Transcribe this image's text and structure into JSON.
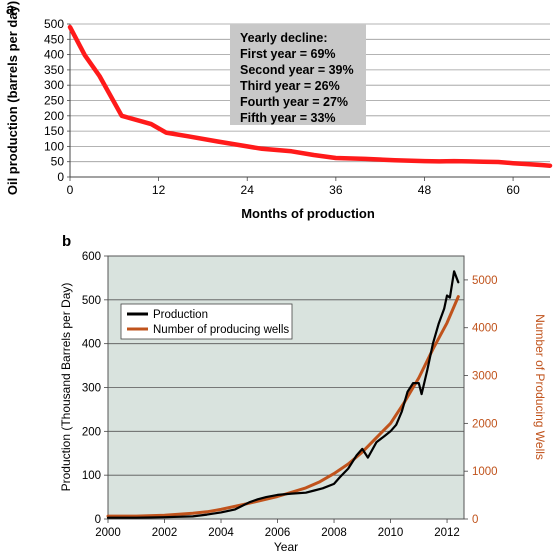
{
  "chart_data": [
    {
      "type": "line",
      "panel_label": "a",
      "xlabel": "Months of production",
      "ylabel": "Oil production (barrels per day)",
      "xlim": [
        0,
        65
      ],
      "ylim": [
        0,
        500
      ],
      "xticks": [
        "0",
        "12",
        "24",
        "36",
        "48",
        "60"
      ],
      "yticks": [
        "0",
        "50",
        "100",
        "150",
        "200",
        "250",
        "300",
        "350",
        "400",
        "450",
        "500"
      ],
      "grid": "horizontal",
      "series": [
        {
          "color": "#ff1a1a",
          "x": [
            0,
            2,
            4,
            7,
            11,
            13,
            16,
            20,
            24,
            26,
            30,
            33,
            36,
            40,
            44,
            48,
            50,
            52,
            54,
            56,
            58,
            60,
            62,
            64,
            65
          ],
          "y": [
            490,
            398,
            330,
            200,
            173,
            145,
            133,
            116,
            100,
            92,
            84,
            72,
            62,
            59,
            55,
            52,
            51,
            52,
            51,
            50,
            49,
            45,
            42,
            39,
            37
          ]
        }
      ],
      "annotation": {
        "lines": [
          "Yearly decline:",
          "First year = 69%",
          "Second year = 39%",
          "Third year = 26%",
          "Fourth year =  27%",
          "Fifth year = 33%"
        ]
      }
    },
    {
      "type": "line",
      "panel_label": "b",
      "xlabel": "Year",
      "ylabel": "Production (Thousand Barrels per Day)",
      "ylabel_right": "Number of Producing Wells",
      "xlim": [
        2000,
        2012.6
      ],
      "ylim": [
        0,
        600
      ],
      "ylim_right": [
        0,
        5500
      ],
      "xticks": [
        "2000",
        "2002",
        "2004",
        "2006",
        "2008",
        "2010",
        "2012"
      ],
      "yticks": [
        "0",
        "100",
        "200",
        "300",
        "400",
        "500",
        "600"
      ],
      "yticks_right": [
        "0",
        "1000",
        "2000",
        "3000",
        "4000",
        "5000"
      ],
      "grid": "horizontal",
      "background": "#d9e3de",
      "legend": {
        "placement": "upper-left",
        "entries": [
          "Production",
          "Number of producing wells"
        ]
      },
      "series": [
        {
          "name": "Production",
          "axis": "left",
          "color": "#000000",
          "x": [
            2000,
            2001,
            2002,
            2003,
            2003.5,
            2004,
            2004.5,
            2005,
            2005.3,
            2005.6,
            2006,
            2006.5,
            2007,
            2007.3,
            2007.6,
            2008,
            2008.2,
            2008.5,
            2008.8,
            2009,
            2009.2,
            2009.5,
            2009.8,
            2010,
            2010.2,
            2010.4,
            2010.6,
            2010.8,
            2011,
            2011.1,
            2011.3,
            2011.5,
            2011.7,
            2011.9,
            2012,
            2012.1,
            2012.25,
            2012.4
          ],
          "y": [
            3,
            3,
            4,
            6,
            10,
            15,
            22,
            38,
            45,
            50,
            55,
            58,
            60,
            65,
            70,
            80,
            95,
            115,
            145,
            160,
            140,
            175,
            190,
            200,
            215,
            245,
            290,
            310,
            310,
            285,
            340,
            400,
            445,
            480,
            510,
            505,
            565,
            540
          ]
        },
        {
          "name": "Number of producing wells",
          "axis": "right",
          "color": "#c0531c",
          "x": [
            2000,
            2001,
            2002,
            2003,
            2003.5,
            2004,
            2005,
            2006,
            2007,
            2007.5,
            2008,
            2008.5,
            2009,
            2009.5,
            2010,
            2010.5,
            2011,
            2011.5,
            2012,
            2012.4
          ],
          "y": [
            60,
            60,
            80,
            120,
            150,
            200,
            330,
            470,
            650,
            780,
            950,
            1150,
            1400,
            1700,
            2000,
            2450,
            2950,
            3550,
            4100,
            4650
          ]
        }
      ]
    }
  ]
}
